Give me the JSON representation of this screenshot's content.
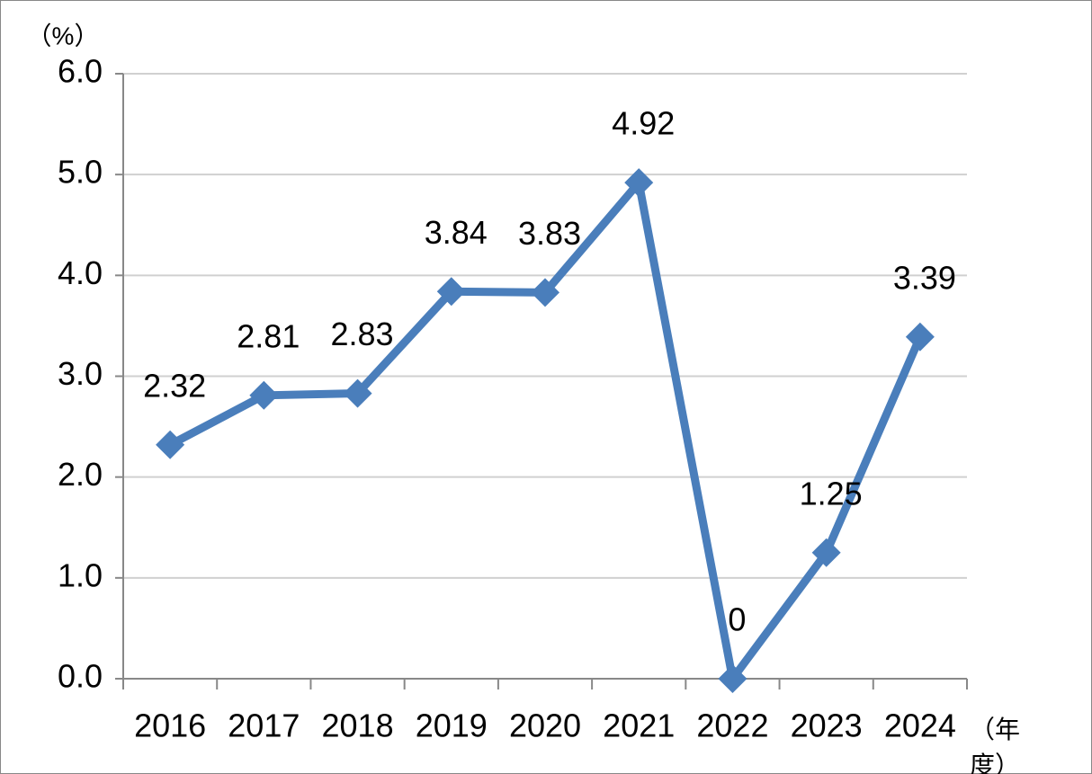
{
  "chart_data": {
    "type": "line",
    "y_unit": "（%）",
    "x_unit": "（年度）",
    "categories": [
      "2016",
      "2017",
      "2018",
      "2019",
      "2020",
      "2021",
      "2022",
      "2023",
      "2024"
    ],
    "series": [
      {
        "color": "#4a7ebb",
        "values": [
          2.32,
          2.81,
          2.83,
          3.84,
          3.83,
          4.92,
          0,
          1.25,
          3.39
        ]
      }
    ],
    "ylim": [
      0,
      6
    ],
    "yticks": [
      {
        "value": 0,
        "label": "0.0"
      },
      {
        "value": 1,
        "label": "1.0"
      },
      {
        "value": 2,
        "label": "2.0"
      },
      {
        "value": 3,
        "label": "3.0"
      },
      {
        "value": 4,
        "label": "4.0"
      },
      {
        "value": 5,
        "label": "5.0"
      },
      {
        "value": 6,
        "label": "6.0"
      }
    ],
    "grid": true
  }
}
